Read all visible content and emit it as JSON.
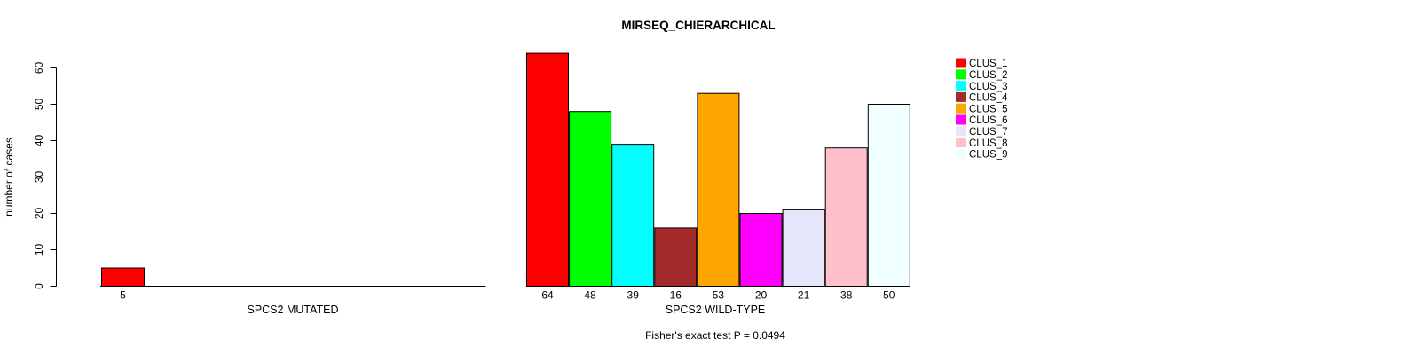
{
  "chart_data": {
    "type": "bar",
    "title": "MIRSEQ_CHIERARCHICAL",
    "ylabel": "number of cases",
    "ylim": [
      0,
      60
    ],
    "yticks": [
      0,
      10,
      20,
      30,
      40,
      50,
      60
    ],
    "categories": [
      "CLUS_1",
      "CLUS_2",
      "CLUS_3",
      "CLUS_4",
      "CLUS_5",
      "CLUS_6",
      "CLUS_7",
      "CLUS_8",
      "CLUS_9"
    ],
    "palette": [
      "#FF0000",
      "#00FF00",
      "#00FFFF",
      "#A52A2A",
      "#FFA500",
      "#FF00FF",
      "#E6E6FA",
      "#FFC0CB",
      "#F0FFFF"
    ],
    "groups": [
      {
        "xlabel": "SPCS2 MUTATED",
        "values": [
          5
        ]
      },
      {
        "xlabel": "SPCS2 WILD-TYPE",
        "values": [
          64,
          48,
          39,
          16,
          53,
          20,
          21,
          38,
          50
        ]
      }
    ],
    "legend": {
      "position": "right",
      "entries": [
        "CLUS_1",
        "CLUS_2",
        "CLUS_3",
        "CLUS_4",
        "CLUS_5",
        "CLUS_6",
        "CLUS_7",
        "CLUS_8",
        "CLUS_9"
      ]
    },
    "annotation": "Fisher's exact test P = 0.0494",
    "grid": false,
    "axis_color": "#000000",
    "background": "#FFFFFF"
  }
}
